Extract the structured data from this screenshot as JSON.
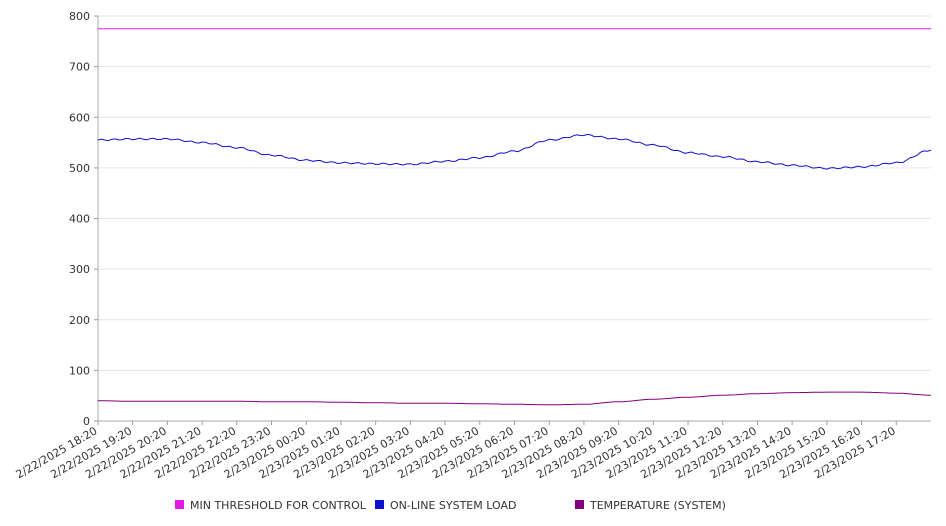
{
  "chart_data": {
    "type": "line",
    "title": "",
    "xlabel": "",
    "ylabel": "",
    "ylim": [
      0,
      800
    ],
    "yticks": [
      0,
      100,
      200,
      300,
      400,
      500,
      600,
      700,
      800
    ],
    "grid": true,
    "legend_position": "bottom",
    "x_tick_labels": [
      "2/22/2025 18:20",
      "2/22/2025 19:20",
      "2/22/2025 20:20",
      "2/22/2025 21:20",
      "2/22/2025 22:20",
      "2/22/2025 23:20",
      "2/23/2025 00:20",
      "2/23/2025 01:20",
      "2/23/2025 02:20",
      "2/23/2025 03:20",
      "2/23/2025 04:20",
      "2/23/2025 05:20",
      "2/23/2025 06:20",
      "2/23/2025 07:20",
      "2/23/2025 08:20",
      "2/23/2025 09:20",
      "2/23/2025 10:20",
      "2/23/2025 11:20",
      "2/23/2025 12:20",
      "2/23/2025 13:20",
      "2/23/2025 14:20",
      "2/23/2025 15:20",
      "2/23/2025 16:20",
      "2/23/2025 17:20"
    ],
    "x_range": [
      "2/22/2025 18:20",
      "2/23/2025 18:20"
    ],
    "series": [
      {
        "name": "MIN THRESHOLD FOR CONTROL",
        "color": "#e31ae3",
        "x": [
          "2/22/2025 18:20",
          "2/23/2025 18:20"
        ],
        "values": [
          775,
          775
        ]
      },
      {
        "name": "ON-LINE SYSTEM LOAD",
        "color": "#1010d0",
        "x": [
          "2/22/2025 18:20",
          "2/22/2025 19:20",
          "2/22/2025 20:20",
          "2/22/2025 21:20",
          "2/22/2025 22:20",
          "2/22/2025 23:20",
          "2/23/2025 00:20",
          "2/23/2025 01:20",
          "2/23/2025 02:20",
          "2/23/2025 03:20",
          "2/23/2025 04:20",
          "2/23/2025 05:20",
          "2/23/2025 06:20",
          "2/23/2025 07:20",
          "2/23/2025 08:20",
          "2/23/2025 09:20",
          "2/23/2025 10:20",
          "2/23/2025 11:20",
          "2/23/2025 12:20",
          "2/23/2025 13:20",
          "2/23/2025 14:20",
          "2/23/2025 15:20",
          "2/23/2025 16:20",
          "2/23/2025 17:20",
          "2/23/2025 18:20"
        ],
        "values": [
          555,
          557,
          557,
          550,
          540,
          525,
          515,
          510,
          508,
          507,
          513,
          520,
          533,
          555,
          565,
          557,
          545,
          530,
          522,
          512,
          505,
          499,
          502,
          510,
          535
        ]
      },
      {
        "name": "TEMPERATURE (SYSTEM)",
        "color": "#800080",
        "x": [
          "2/22/2025 18:20",
          "2/22/2025 19:20",
          "2/22/2025 20:20",
          "2/22/2025 21:20",
          "2/22/2025 22:20",
          "2/22/2025 23:20",
          "2/23/2025 00:20",
          "2/23/2025 01:20",
          "2/23/2025 02:20",
          "2/23/2025 03:20",
          "2/23/2025 04:20",
          "2/23/2025 05:20",
          "2/23/2025 06:20",
          "2/23/2025 07:20",
          "2/23/2025 08:20",
          "2/23/2025 09:20",
          "2/23/2025 10:20",
          "2/23/2025 11:20",
          "2/23/2025 12:20",
          "2/23/2025 13:20",
          "2/23/2025 14:20",
          "2/23/2025 15:20",
          "2/23/2025 16:20",
          "2/23/2025 17:20",
          "2/23/2025 18:20"
        ],
        "values": [
          40,
          39,
          39,
          39,
          39,
          38,
          38,
          37,
          36,
          35,
          35,
          34,
          33,
          32,
          33,
          38,
          43,
          47,
          51,
          54,
          56,
          57,
          57,
          55,
          51
        ]
      }
    ]
  }
}
